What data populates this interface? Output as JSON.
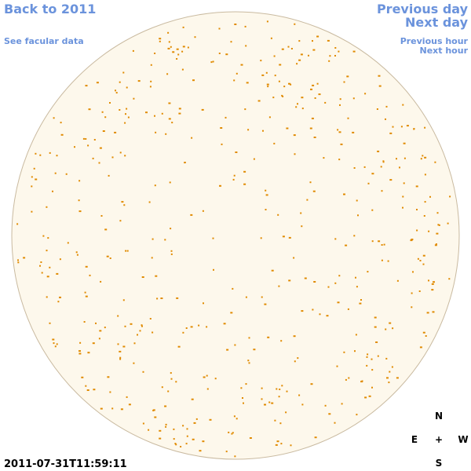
{
  "navigation": {
    "back": "Back to 2011",
    "facular_data": "See facular data",
    "previous_day": "Previous day",
    "next_day": "Next day",
    "previous_hour": "Previous hour",
    "next_hour": "Next hour"
  },
  "compass": {
    "north": "N",
    "east": "E",
    "center": "+",
    "west": "W",
    "south": "S"
  },
  "timestamp": "2011-07-31T11:59:11"
}
